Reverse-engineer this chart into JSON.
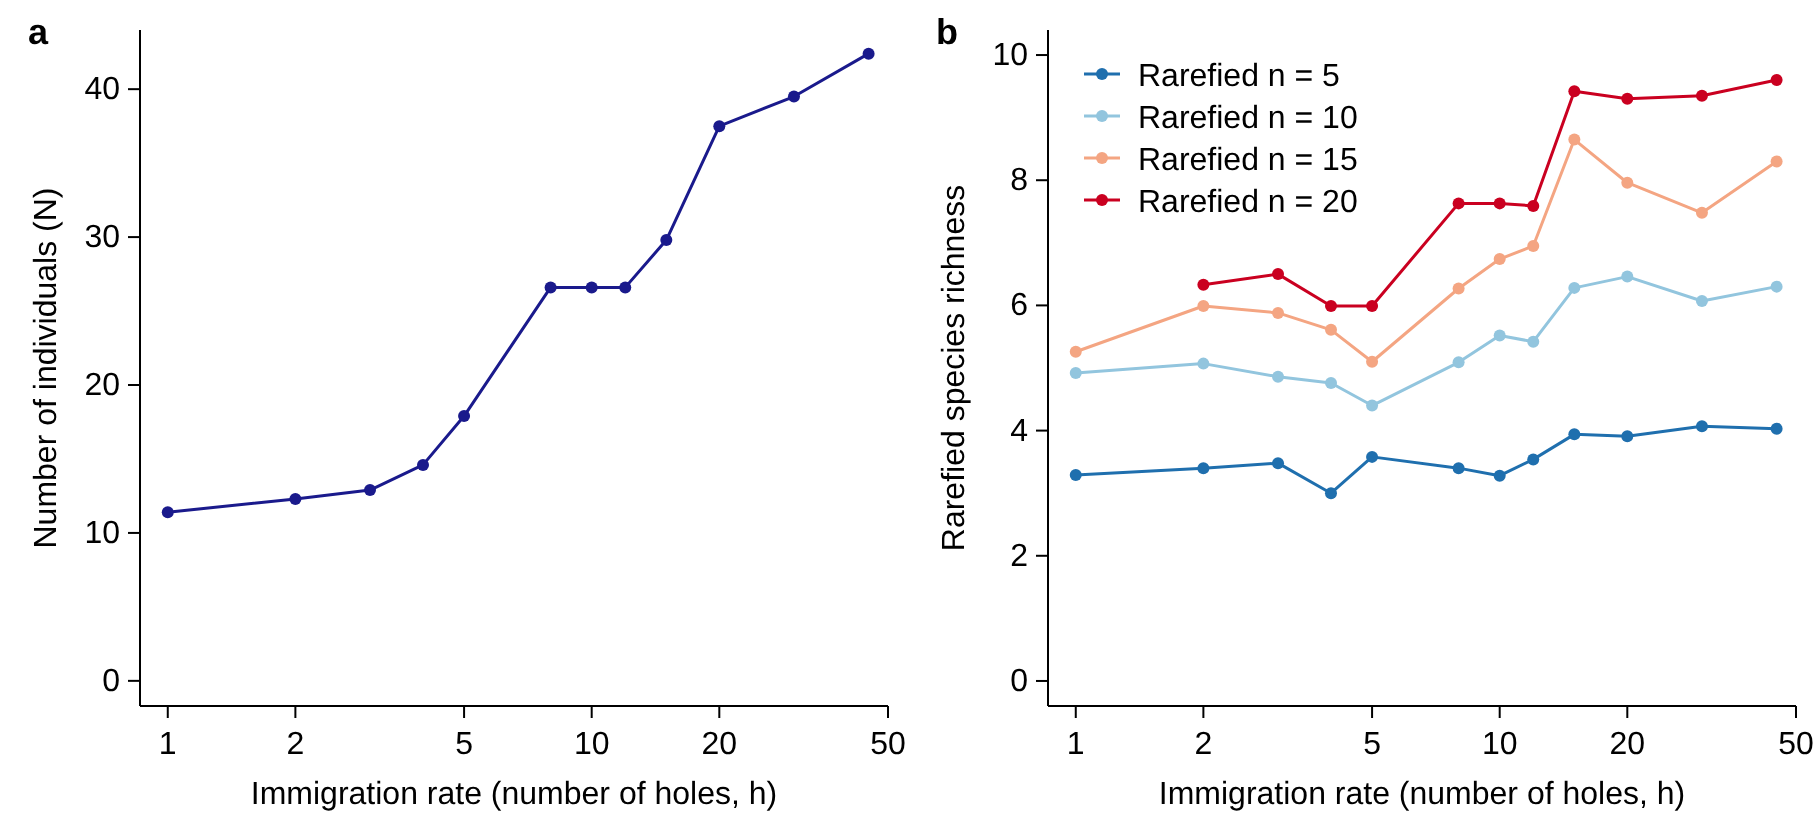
{
  "chart_data": [
    {
      "type": "line",
      "title": "a",
      "xlabel": "Immigration rate (number of holes, h)",
      "ylabel": "Number of individuals (N)",
      "log": "x",
      "marker": "circle",
      "line_style": "solid",
      "grid": false,
      "legend": false,
      "x": [
        1,
        2,
        3,
        4,
        5,
        8,
        10,
        12,
        15,
        20,
        30,
        45
      ],
      "xlim": [
        0.86,
        50
      ],
      "xticks": [
        1,
        2,
        5,
        10,
        20,
        50
      ],
      "ylim": [
        -1.7,
        44
      ],
      "yticks": [
        0,
        10,
        20,
        30,
        40
      ],
      "series": [
        {
          "color": "#1a1a8c",
          "values": [
            11.4,
            12.3,
            12.9,
            14.6,
            17.9,
            26.6,
            26.6,
            26.6,
            29.8,
            37.5,
            39.5,
            42.4
          ]
        }
      ]
    },
    {
      "type": "line",
      "title": "b",
      "xlabel": "Immigration rate (number of holes, h)",
      "ylabel": "Rarefied species richness",
      "log": "x",
      "marker": "circle",
      "line_style": "solid",
      "grid": false,
      "legend": "top left",
      "x": [
        1,
        2,
        3,
        4,
        5,
        8,
        10,
        12,
        15,
        20,
        30,
        45
      ],
      "xlim": [
        0.86,
        50
      ],
      "xticks": [
        1,
        2,
        5,
        10,
        20,
        50
      ],
      "ylim": [
        -0.4,
        10.4
      ],
      "yticks": [
        0,
        2,
        4,
        6,
        8,
        10
      ],
      "series": [
        {
          "name": "Rarefied n = 5",
          "color": "#1f6fae",
          "values": [
            3.29,
            3.4,
            3.48,
            3.0,
            3.58,
            3.4,
            3.28,
            3.54,
            3.94,
            3.91,
            4.07,
            4.03
          ]
        },
        {
          "name": "Rarefied n = 10",
          "color": "#92c5de",
          "values": [
            4.92,
            5.07,
            4.86,
            4.76,
            4.4,
            5.09,
            5.52,
            5.42,
            6.28,
            6.46,
            6.07,
            6.3
          ]
        },
        {
          "name": "Rarefied n = 15",
          "color": "#f4a582",
          "values": [
            5.26,
            5.99,
            5.88,
            5.61,
            5.1,
            6.27,
            6.74,
            6.95,
            8.65,
            7.96,
            7.48,
            8.3
          ]
        },
        {
          "name": "Rarefied n = 20",
          "color": "#ca0020",
          "values": [
            null,
            6.33,
            6.5,
            5.99,
            5.99,
            7.63,
            7.63,
            7.59,
            9.42,
            9.3,
            9.35,
            9.6
          ]
        }
      ]
    }
  ]
}
